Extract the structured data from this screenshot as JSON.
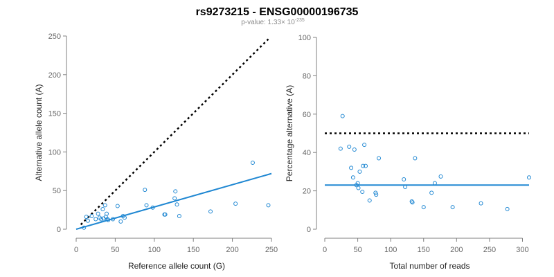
{
  "header": {
    "title": "rs9273215 - ENSG00000196735",
    "pvalue_prefix": "p-value: 1.33× 10",
    "pvalue_exponent": "-235"
  },
  "colors": {
    "points": "#1f87d2",
    "fit": "#1f87d2",
    "reference": "#000000"
  },
  "chart_data": [
    {
      "type": "scatter",
      "xlabel": "Reference allele count (G)",
      "ylabel": "Alternative allele count (A)",
      "xlim": [
        0,
        250
      ],
      "ylim": [
        0,
        250
      ],
      "xticks": [
        0,
        50,
        100,
        150,
        200,
        250
      ],
      "yticks": [
        0,
        50,
        100,
        150,
        200,
        250
      ],
      "grid": false,
      "points": [
        {
          "x": 10,
          "y": 2
        },
        {
          "x": 13,
          "y": 16
        },
        {
          "x": 15,
          "y": 11
        },
        {
          "x": 20,
          "y": 17
        },
        {
          "x": 25,
          "y": 13
        },
        {
          "x": 28,
          "y": 20
        },
        {
          "x": 30,
          "y": 15
        },
        {
          "x": 32,
          "y": 13
        },
        {
          "x": 34,
          "y": 26
        },
        {
          "x": 35,
          "y": 14
        },
        {
          "x": 37,
          "y": 31
        },
        {
          "x": 38,
          "y": 16
        },
        {
          "x": 39,
          "y": 20
        },
        {
          "x": 40,
          "y": 13
        },
        {
          "x": 41,
          "y": 12
        },
        {
          "x": 47,
          "y": 13
        },
        {
          "x": 53,
          "y": 30
        },
        {
          "x": 57,
          "y": 10
        },
        {
          "x": 60,
          "y": 17
        },
        {
          "x": 62,
          "y": 15
        },
        {
          "x": 88,
          "y": 51
        },
        {
          "x": 90,
          "y": 31
        },
        {
          "x": 98,
          "y": 28
        },
        {
          "x": 113,
          "y": 19
        },
        {
          "x": 114,
          "y": 19
        },
        {
          "x": 126,
          "y": 40
        },
        {
          "x": 127,
          "y": 49
        },
        {
          "x": 129,
          "y": 32
        },
        {
          "x": 132,
          "y": 17
        },
        {
          "x": 172,
          "y": 23
        },
        {
          "x": 204,
          "y": 33
        },
        {
          "x": 226,
          "y": 86
        },
        {
          "x": 246,
          "y": 31
        }
      ],
      "fit_line": {
        "x": [
          0,
          250
        ],
        "y": [
          0,
          72
        ]
      },
      "reference_line": {
        "x": [
          6,
          246
        ],
        "y": [
          6,
          246
        ]
      }
    },
    {
      "type": "scatter",
      "xlabel": "Total number of reads",
      "ylabel": "Percentage alternative (A)",
      "xlim": [
        0,
        310
      ],
      "ylim": [
        0,
        100
      ],
      "xticks": [
        0,
        50,
        100,
        150,
        200,
        250,
        300
      ],
      "yticks": [
        0,
        20,
        40,
        60,
        80,
        100
      ],
      "grid": false,
      "points": [
        {
          "x": 24,
          "y": 42
        },
        {
          "x": 27,
          "y": 59
        },
        {
          "x": 37,
          "y": 43
        },
        {
          "x": 40,
          "y": 32
        },
        {
          "x": 43,
          "y": 27
        },
        {
          "x": 45,
          "y": 41.5
        },
        {
          "x": 48,
          "y": 23
        },
        {
          "x": 50,
          "y": 24
        },
        {
          "x": 51,
          "y": 21.5
        },
        {
          "x": 53,
          "y": 30
        },
        {
          "x": 57,
          "y": 19.5
        },
        {
          "x": 58,
          "y": 33
        },
        {
          "x": 60,
          "y": 44
        },
        {
          "x": 62,
          "y": 33
        },
        {
          "x": 68,
          "y": 15
        },
        {
          "x": 77,
          "y": 19
        },
        {
          "x": 78,
          "y": 18
        },
        {
          "x": 82,
          "y": 37
        },
        {
          "x": 120,
          "y": 26
        },
        {
          "x": 122,
          "y": 22
        },
        {
          "x": 132,
          "y": 14.5
        },
        {
          "x": 133,
          "y": 14
        },
        {
          "x": 137,
          "y": 37
        },
        {
          "x": 150,
          "y": 11.5
        },
        {
          "x": 162,
          "y": 19
        },
        {
          "x": 167,
          "y": 24
        },
        {
          "x": 176,
          "y": 27.5
        },
        {
          "x": 194,
          "y": 11.5
        },
        {
          "x": 237,
          "y": 13.5
        },
        {
          "x": 277,
          "y": 10.5
        },
        {
          "x": 310,
          "y": 27
        }
      ],
      "fit_line": {
        "x": [
          0,
          310
        ],
        "y": [
          23,
          23
        ]
      },
      "reference_line": {
        "x": [
          0,
          310
        ],
        "y": [
          50,
          50
        ]
      }
    }
  ]
}
